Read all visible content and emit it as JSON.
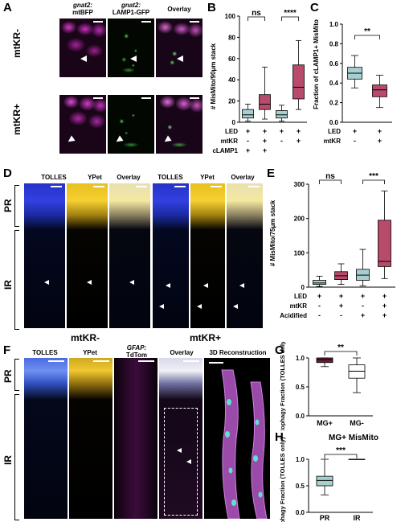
{
  "panels": {
    "A": {
      "label": "A",
      "headers": [
        {
          "line1": "gnat2:",
          "line2": "mtBFP"
        },
        {
          "line1": "gnat2:",
          "line2": "LAMP1-GFP"
        },
        {
          "line1": "Overlay",
          "line2": ""
        }
      ],
      "rows": [
        "mtKR-",
        "mtKR+"
      ]
    },
    "B": {
      "label": "B"
    },
    "C": {
      "label": "C"
    },
    "D": {
      "label": "D",
      "headers": [
        "TOLLES",
        "YPet",
        "Overlay",
        "TOLLES",
        "YPet",
        "Overlay"
      ],
      "rows": [
        "PR",
        "IR"
      ],
      "group_labels": [
        "mtKR-",
        "mtKR+"
      ]
    },
    "E": {
      "label": "E"
    },
    "F": {
      "label": "F",
      "headers": [
        "TOLLES",
        "YPet",
        "GFAP:",
        "TdTom",
        "Overlay",
        "3D Reconstruction"
      ],
      "rows": [
        "PR",
        "IR"
      ]
    },
    "G": {
      "label": "G"
    },
    "H": {
      "label": "H"
    }
  },
  "chart_data": [
    {
      "panel": "B",
      "type": "box",
      "ylabel": "# MisMito/90μm stack",
      "ylim": [
        0,
        100
      ],
      "yticks": [
        0,
        20,
        40,
        60,
        80,
        100
      ],
      "condition_rows": [
        {
          "name": "LED",
          "values": [
            "+",
            "+",
            "+",
            "+"
          ]
        },
        {
          "name": "mtKR",
          "values": [
            "-",
            "+",
            "-",
            "+"
          ]
        },
        {
          "name": "cLAMP1",
          "values": [
            "+",
            "+",
            "",
            ""
          ]
        }
      ],
      "boxes": [
        {
          "min": 1,
          "q1": 4,
          "median": 7,
          "q3": 12,
          "max": 17,
          "color": "#a8cfd0"
        },
        {
          "min": 3,
          "q1": 12,
          "median": 17,
          "q3": 26,
          "max": 52,
          "color": "#b84a6b"
        },
        {
          "min": 1,
          "q1": 4,
          "median": 7,
          "q3": 11,
          "max": 16,
          "color": "#a8cfd0"
        },
        {
          "min": 12,
          "q1": 22,
          "median": 33,
          "q3": 54,
          "max": 77,
          "color": "#b84a6b"
        }
      ],
      "significance": [
        {
          "from": 0,
          "to": 1,
          "text": "ns"
        },
        {
          "from": 2,
          "to": 3,
          "text": "****"
        }
      ]
    },
    {
      "panel": "C",
      "type": "box",
      "ylabel": "Fraction of cLAMP1+ MisMito",
      "ylim": [
        0.0,
        1.0
      ],
      "yticks": [
        "0.0",
        "0.2",
        "0.4",
        "0.6",
        "0.8",
        "1.0"
      ],
      "condition_rows": [
        {
          "name": "LED",
          "values": [
            "+",
            "+"
          ]
        },
        {
          "name": "mtKR",
          "values": [
            "-",
            "+"
          ]
        }
      ],
      "boxes": [
        {
          "min": 0.35,
          "q1": 0.44,
          "median": 0.5,
          "q3": 0.56,
          "max": 0.68,
          "color": "#a8cfd0"
        },
        {
          "min": 0.15,
          "q1": 0.26,
          "median": 0.33,
          "q3": 0.38,
          "max": 0.48,
          "color": "#b84a6b"
        }
      ],
      "significance": [
        {
          "from": 0,
          "to": 1,
          "text": "**"
        }
      ]
    },
    {
      "panel": "E",
      "type": "box",
      "ylabel": "# MisMito/75μm stack",
      "ylim": [
        0,
        300
      ],
      "yticks": [
        0,
        100,
        200,
        300
      ],
      "condition_rows": [
        {
          "name": "LED",
          "values": [
            "+",
            "+",
            "+",
            "+"
          ]
        },
        {
          "name": "mtKR",
          "values": [
            "-",
            "+",
            "-",
            "+"
          ]
        },
        {
          "name": "Acidified",
          "values": [
            "-",
            "-",
            "+",
            "+"
          ]
        }
      ],
      "boxes": [
        {
          "min": 2,
          "q1": 8,
          "median": 12,
          "q3": 20,
          "max": 32,
          "color": "#a8cfd0"
        },
        {
          "min": 8,
          "q1": 22,
          "median": 33,
          "q3": 45,
          "max": 68,
          "color": "#b84a6b"
        },
        {
          "min": 4,
          "q1": 20,
          "median": 35,
          "q3": 52,
          "max": 110,
          "color": "#a8cfd0"
        },
        {
          "min": 25,
          "q1": 60,
          "median": 75,
          "q3": 195,
          "max": 280,
          "color": "#b84a6b"
        }
      ],
      "significance": [
        {
          "from": 0,
          "to": 1,
          "text": "ns"
        },
        {
          "from": 2,
          "to": 3,
          "text": "***"
        }
      ]
    },
    {
      "panel": "G",
      "type": "box",
      "ylabel": "Mitophagy Fraction (TOLLES only)",
      "ylim": [
        0.0,
        1.0
      ],
      "yticks": [
        "0.0",
        "0.5",
        "1.0"
      ],
      "categories": [
        "MG+",
        "MG-"
      ],
      "boxes": [
        {
          "min": 0.85,
          "q1": 0.92,
          "median": 0.97,
          "q3": 1.0,
          "max": 1.0,
          "color": "#6b1e3c"
        },
        {
          "min": 0.4,
          "q1": 0.65,
          "median": 0.77,
          "q3": 0.88,
          "max": 1.0,
          "color": "#ffffff"
        }
      ],
      "significance": [
        {
          "from": 0,
          "to": 1,
          "text": "**"
        }
      ]
    },
    {
      "panel": "H",
      "type": "box",
      "title": "MG+ MisMito",
      "ylabel": "Mitophagy Fraction (TOLLES only)",
      "ylim": [
        0.0,
        1.0
      ],
      "yticks": [
        "0.0",
        "0.5",
        "1.0"
      ],
      "categories": [
        "PR",
        "IR"
      ],
      "boxes": [
        {
          "min": 0.33,
          "q1": 0.5,
          "median": 0.6,
          "q3": 0.68,
          "max": 1.0,
          "color": "#a8cfd0"
        },
        {
          "min": 1.0,
          "q1": 1.0,
          "median": 1.0,
          "q3": 1.0,
          "max": 1.0,
          "color": "#a8cfd0"
        }
      ],
      "significance": [
        {
          "from": 0,
          "to": 1,
          "text": "***"
        }
      ]
    }
  ]
}
